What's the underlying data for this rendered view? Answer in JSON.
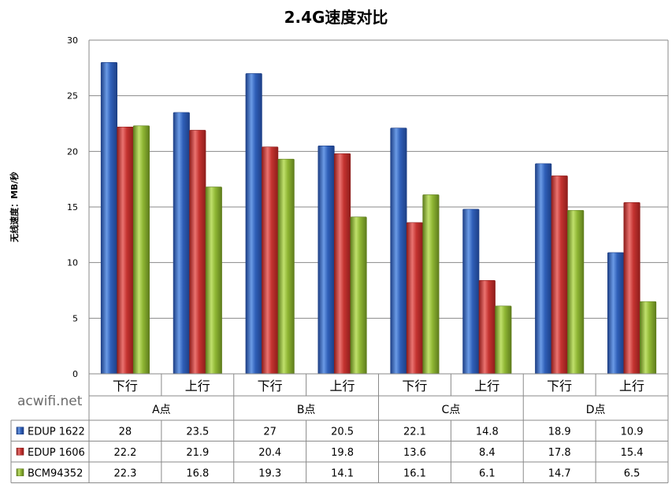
{
  "chart_data": {
    "type": "bar",
    "title": "2.4G速度对比",
    "ylabel": "无线速度：MB/秒",
    "xlabel": "",
    "ylim": [
      0,
      30
    ],
    "yticks": [
      0,
      5,
      10,
      15,
      20,
      25,
      30
    ],
    "grid": true,
    "categories": [
      "下行",
      "上行",
      "下行",
      "上行",
      "下行",
      "上行",
      "下行",
      "上行"
    ],
    "groups": [
      "A点",
      "B点",
      "C点",
      "D点"
    ],
    "series": [
      {
        "name": "EDUP 1622",
        "color": "#3b6fc7",
        "values": [
          28,
          23.5,
          27,
          20.5,
          22.1,
          14.8,
          18.9,
          10.9
        ]
      },
      {
        "name": "EDUP 1606",
        "color": "#cc3b38",
        "values": [
          22.2,
          21.9,
          20.4,
          19.8,
          13.6,
          8.4,
          17.8,
          15.4
        ]
      },
      {
        "name": "BCM94352",
        "color": "#97bf3c",
        "values": [
          22.3,
          16.8,
          19.3,
          14.1,
          16.1,
          6.1,
          14.7,
          6.5
        ]
      }
    ],
    "data_table": true
  },
  "watermark": "acwifi.net"
}
